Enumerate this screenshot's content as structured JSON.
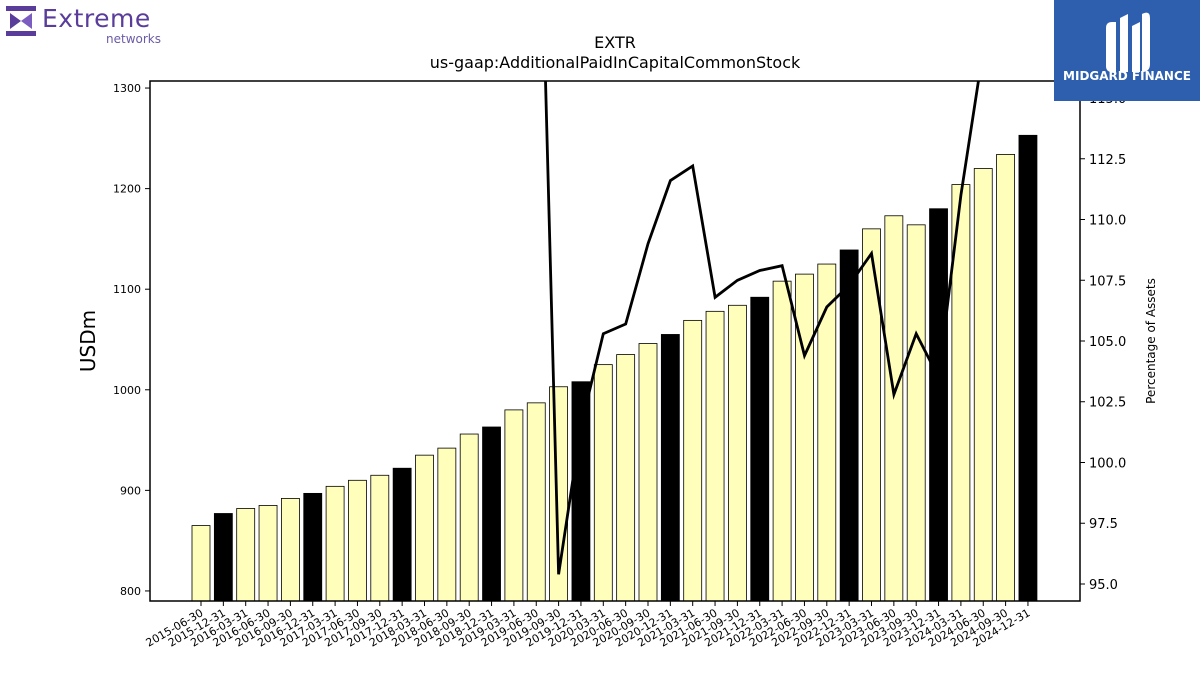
{
  "logos": {
    "left_word": "Extreme",
    "left_sub": "networks",
    "right_word": "MIDGARD FINANCE"
  },
  "chart_data": {
    "type": "bar",
    "title": "EXTR",
    "subtitle": "us-gaap:AdditionalPaidInCapitalCommonStock",
    "ylabel": "USDm",
    "y2label": "Percentage of Assets",
    "ylim": [
      790,
      1307
    ],
    "y2lim": [
      94.3,
      115.7
    ],
    "yticks": [
      800,
      900,
      1000,
      1100,
      1200,
      1300
    ],
    "y2ticks": [
      "95.0",
      "97.5",
      "100.0",
      "102.5",
      "105.0",
      "107.5",
      "110.0",
      "112.5",
      "115.0"
    ],
    "colors": {
      "bar": "#ffffbb",
      "bar_highlight": "#000000",
      "line": "#000000"
    },
    "categories": [
      "2015-06-30",
      "2015-12-31",
      "2016-03-31",
      "2016-06-30",
      "2016-09-30",
      "2016-12-31",
      "2017-03-31",
      "2017-06-30",
      "2017-09-30",
      "2017-12-31",
      "2018-03-31",
      "2018-06-30",
      "2018-09-30",
      "2018-12-31",
      "2019-03-31",
      "2019-06-30",
      "2019-09-30",
      "2019-12-31",
      "2020-03-31",
      "2020-06-30",
      "2020-09-30",
      "2020-12-31",
      "2021-03-31",
      "2021-06-30",
      "2021-09-30",
      "2021-12-31",
      "2022-03-31",
      "2022-06-30",
      "2022-09-30",
      "2022-12-31",
      "2023-03-31",
      "2023-06-30",
      "2023-09-30",
      "2023-12-31",
      "2024-03-31",
      "2024-06-30",
      "2024-09-30",
      "2024-12-31"
    ],
    "highlight": [
      false,
      true,
      false,
      false,
      false,
      true,
      false,
      false,
      false,
      true,
      false,
      false,
      false,
      true,
      false,
      false,
      false,
      true,
      false,
      false,
      false,
      true,
      false,
      false,
      false,
      true,
      false,
      false,
      false,
      true,
      false,
      false,
      false,
      true,
      false,
      false,
      false,
      true
    ],
    "series": [
      {
        "type": "bar",
        "axis": "left",
        "values": [
          865,
          877,
          882,
          885,
          892,
          897,
          904,
          910,
          915,
          922,
          935,
          942,
          956,
          963,
          980,
          987,
          1003,
          1008,
          1025,
          1035,
          1046,
          1055,
          1069,
          1078,
          1084,
          1092,
          1108,
          1115,
          1125,
          1139,
          1160,
          1173,
          1164,
          1180,
          1204,
          1220,
          1234,
          1253
        ]
      },
      {
        "type": "line",
        "axis": "right",
        "values": [
          null,
          null,
          null,
          null,
          null,
          null,
          null,
          null,
          null,
          null,
          null,
          null,
          null,
          null,
          null,
          130.0,
          95.4,
          101.5,
          105.3,
          105.7,
          109.0,
          111.6,
          112.2,
          106.8,
          107.5,
          107.9,
          108.1,
          104.4,
          106.4,
          107.3,
          108.6,
          102.8,
          105.3,
          103.5,
          111.0,
          117.0,
          null,
          null
        ]
      }
    ]
  }
}
